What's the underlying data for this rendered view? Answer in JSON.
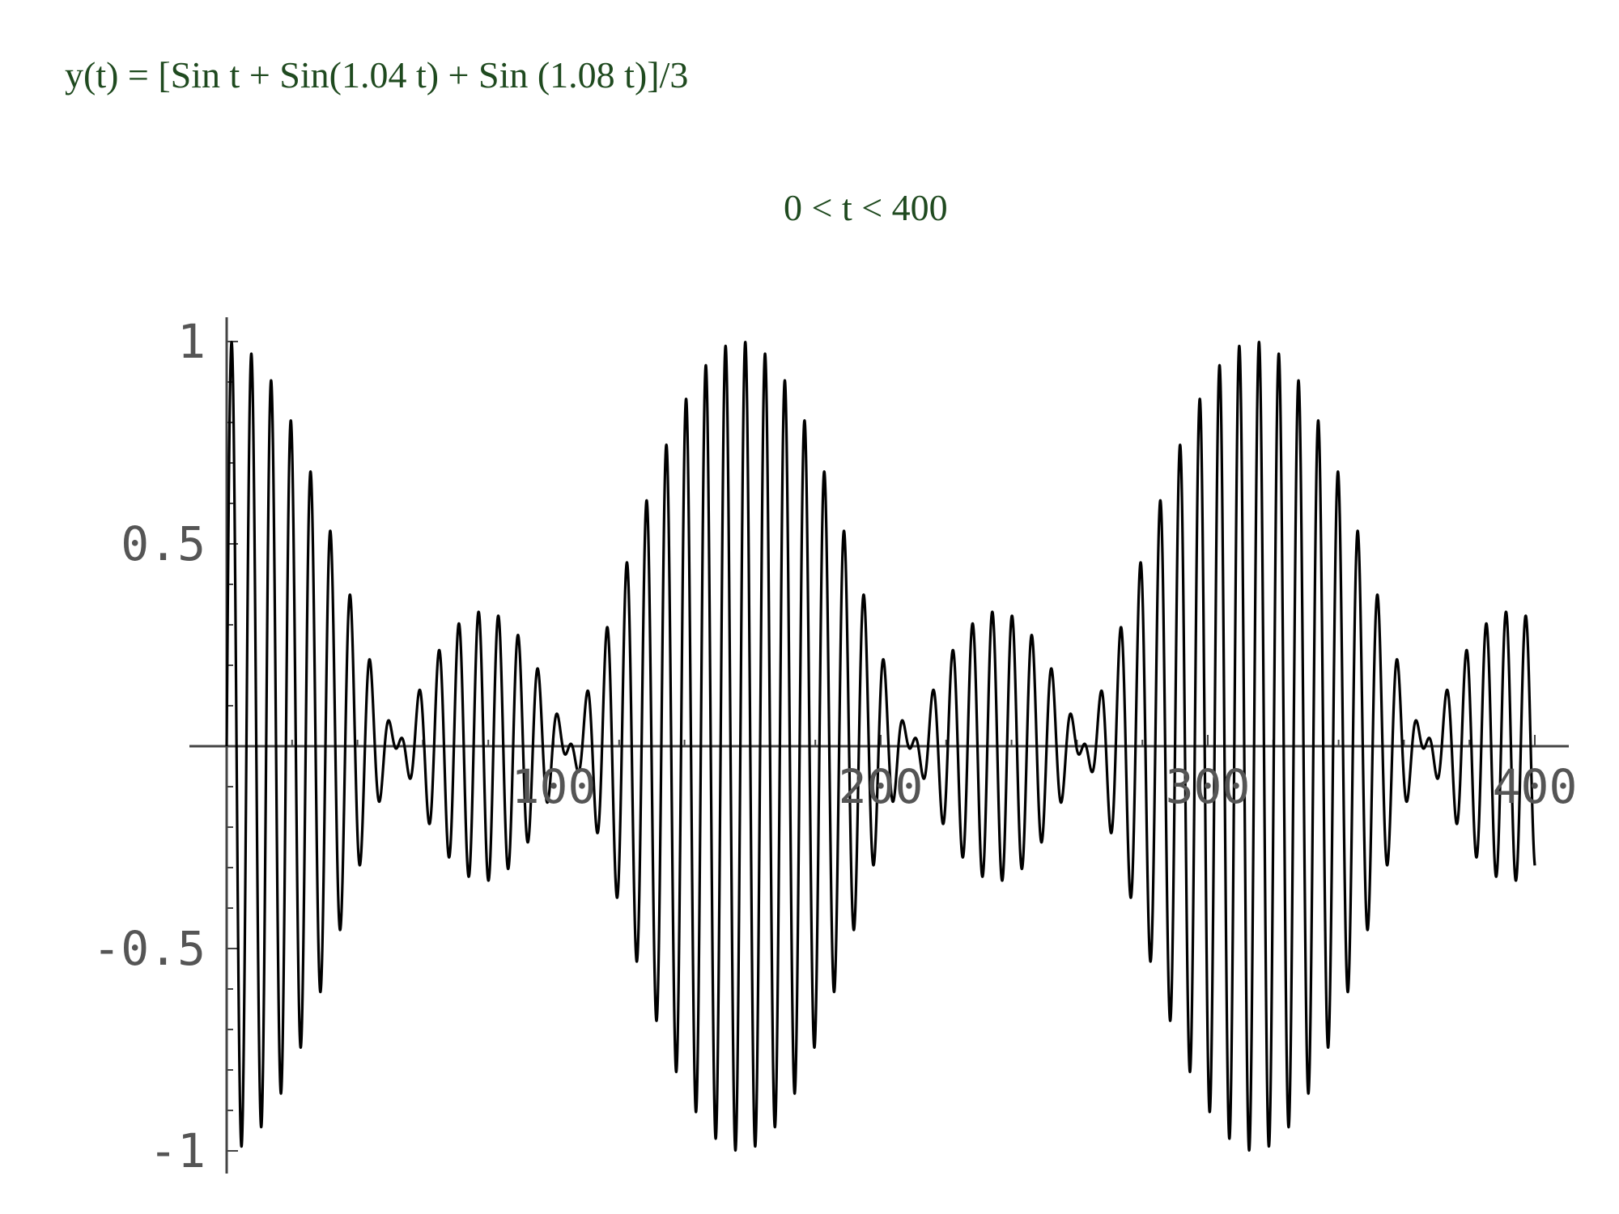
{
  "formula_text": "y(t) = [Sin t + Sin(1.04 t) + Sin (1.08 t)]/3",
  "range_text": "0 < t < 400",
  "chart_data": {
    "type": "line",
    "function": "y(t) = [sin(t) + sin(1.04 t) + sin(1.08 t)] / 3",
    "coefficients": [
      1,
      1.04,
      1.08
    ],
    "xlim": [
      0,
      400
    ],
    "ylim": [
      -1,
      1
    ],
    "xticks": [
      100,
      200,
      300,
      400
    ],
    "xtick_labels": [
      "100",
      "200",
      "300",
      "400"
    ],
    "yticks": [
      1,
      0.5,
      -0.5,
      -1
    ],
    "ytick_labels": [
      "1",
      "0.5",
      "-0.5",
      "-1"
    ],
    "line_color": "#000000",
    "text_color": "#1f4a1f",
    "grid": false,
    "legend": "none"
  }
}
